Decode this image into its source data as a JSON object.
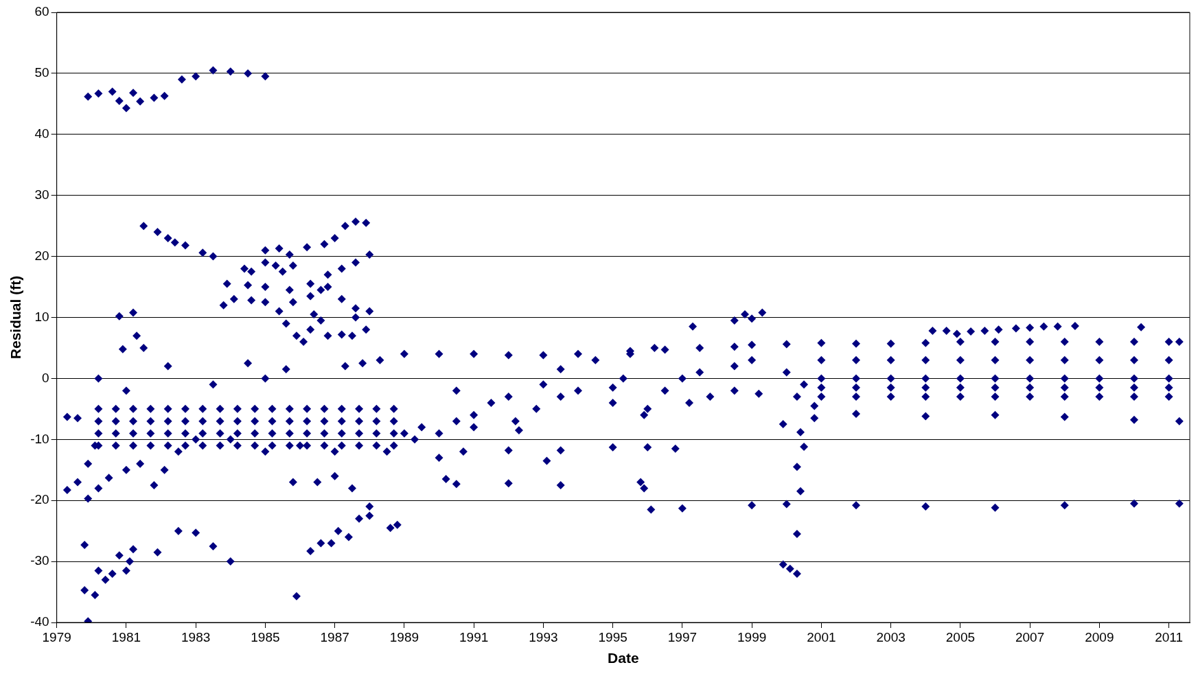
{
  "chart_data": {
    "type": "scatter",
    "xlabel": "Date",
    "ylabel": "Residual (ft)",
    "xlim": [
      1979,
      2011.6
    ],
    "xticks": [
      1979,
      1981,
      1983,
      1985,
      1987,
      1989,
      1991,
      1993,
      1995,
      1997,
      1999,
      2001,
      2003,
      2005,
      2007,
      2009,
      2011
    ],
    "ylim": [
      -40,
      60
    ],
    "yticks": [
      -40,
      -30,
      -20,
      -10,
      0,
      10,
      20,
      30,
      40,
      50,
      60
    ],
    "grid": "y",
    "legend": false,
    "marker": "diamond",
    "series": [
      {
        "color": "#000080",
        "x": [
          1979.9,
          1980.2,
          1980.6,
          1980.8,
          1981.0,
          1981.2,
          1981.4,
          1981.8,
          1982.1,
          1982.6,
          1983,
          1983.5,
          1984,
          1984.5,
          1985
        ],
        "values": [
          46.2,
          46.7,
          47,
          45.5,
          44.3,
          46.8,
          45.4,
          46,
          46.3,
          49,
          49.5,
          50.5,
          50.3,
          50,
          49.5
        ]
      },
      {
        "color": "#000080",
        "x": [
          1981.5,
          1981.9,
          1982.2,
          1982.4,
          1982.7,
          1983.2,
          1983.5
        ],
        "values": [
          25,
          24,
          23,
          22.3,
          21.8,
          20.6,
          20
        ]
      },
      {
        "color": "#000080",
        "x": [
          1983.8,
          1984.1,
          1984.6,
          1985,
          1985.8,
          1986.3,
          1986.6,
          1986.8,
          1987.2,
          1987.6,
          1988
        ],
        "values": [
          12,
          13,
          12.8,
          12.5,
          12.5,
          13.5,
          14.5,
          15,
          13,
          11.5,
          11
        ]
      },
      {
        "color": "#000080",
        "x": [
          1983.9,
          1984.5,
          1985,
          1985.7,
          1986.3,
          1986.8,
          1987.2,
          1987.6,
          1988
        ],
        "values": [
          15.5,
          15.3,
          15,
          14.5,
          15.5,
          17,
          18,
          19,
          20.3
        ]
      },
      {
        "color": "#000080",
        "x": [
          1985,
          1985.4,
          1985.7,
          1986.2,
          1986.7,
          1987,
          1987.3,
          1987.6,
          1987.9
        ],
        "values": [
          21,
          21.3,
          20.3,
          21.5,
          22,
          23,
          25,
          25.7,
          25.5
        ]
      },
      {
        "color": "#000080",
        "x": [
          1984.4,
          1984.6,
          1985,
          1985.3,
          1985.5,
          1985.8,
          1985.4,
          1985.6,
          1985.9,
          1986.1,
          1986.4,
          1986.3,
          1986.6,
          1986.8,
          1987.2,
          1987.5,
          1987.6,
          1987.9
        ],
        "values": [
          18,
          17.5,
          19,
          18.5,
          17.5,
          18.5,
          11,
          9,
          7,
          6,
          10.5,
          8,
          9.5,
          7,
          7.2,
          7,
          10,
          8
        ]
      },
      {
        "color": "#000080",
        "x": [
          1980.8,
          1981.2,
          1980.9,
          1981.3,
          1981.5
        ],
        "values": [
          10.2,
          10.8,
          4.8,
          7,
          5
        ]
      },
      {
        "color": "#000080",
        "x": [
          1981.2,
          1981.9,
          1982.5,
          1983,
          1983.5,
          1984
        ],
        "values": [
          -28,
          -28.5,
          -25,
          -25.3,
          -27.5,
          -30
        ]
      },
      {
        "color": "#000080",
        "x": [
          1979.8,
          1979.8,
          1980.1,
          1979.9,
          1980.2,
          1980.4,
          1980.6,
          1980.8,
          1981,
          1981.1
        ],
        "values": [
          -27.3,
          -34.7,
          -35.5,
          -39.8,
          -31.5,
          -33,
          -32,
          -29,
          -31.5,
          -30
        ]
      },
      {
        "color": "#000080",
        "x": [
          1985.9,
          1986.3,
          1986.6,
          1986.9,
          1987.1,
          1987.4,
          1987.7,
          1988
        ],
        "values": [
          -35.7,
          -28.3,
          -27,
          -27,
          -25,
          -26,
          -23,
          -22.5
        ]
      },
      {
        "color": "#000080",
        "x": [
          1985,
          1985.8,
          1986.5,
          1987,
          1987.5,
          1988,
          1988.6,
          1988.8
        ],
        "values": [
          -12,
          -17,
          -17,
          -16,
          -18,
          -21,
          -24.5,
          -24
        ]
      },
      {
        "color": "#000080",
        "x": [
          1979.3,
          1979.6,
          1979.3,
          1979.6,
          1979.9,
          1980.1,
          1979.9,
          1980.2,
          1980.5,
          1981,
          1981.4,
          1981.8,
          1982.1,
          1982.5,
          1983
        ],
        "values": [
          -6.3,
          -6.5,
          -18.3,
          -17,
          -14,
          -11,
          -19.7,
          -18,
          -16.3,
          -15,
          -14,
          -17.5,
          -15,
          -12,
          -10
        ]
      },
      {
        "color": "#000080",
        "x": [
          1980.2,
          1980.7,
          1981.2,
          1981.7,
          1982.2,
          1982.7,
          1983.2,
          1983.7,
          1984.2,
          1984.7,
          1985.2,
          1985.7,
          1986.2,
          1986.7,
          1987.2,
          1987.7,
          1988.2,
          1988.7
        ],
        "values": [
          -5,
          -5,
          -5,
          -5,
          -5,
          -5,
          -5,
          -5,
          -5,
          -5,
          -5,
          -5,
          -5,
          -5,
          -5,
          -5,
          -5,
          -5
        ]
      },
      {
        "color": "#000080",
        "x": [
          1980.2,
          1980.7,
          1981.2,
          1981.7,
          1982.2,
          1982.7,
          1983.2,
          1983.7,
          1984.2,
          1984.7,
          1985.2,
          1985.7,
          1986.2,
          1986.7,
          1987.2,
          1987.7,
          1988.2,
          1988.7
        ],
        "values": [
          -7,
          -7,
          -7,
          -7,
          -7,
          -7,
          -7,
          -7,
          -7,
          -7,
          -7,
          -7,
          -7,
          -7,
          -7,
          -7,
          -7,
          -7
        ]
      },
      {
        "color": "#000080",
        "x": [
          1980.2,
          1980.7,
          1981.2,
          1981.7,
          1982.2,
          1982.7,
          1983.2,
          1983.7,
          1984.2,
          1984.7,
          1985.2,
          1985.7,
          1986.2,
          1986.7,
          1987.2,
          1987.7,
          1988.2,
          1988.7
        ],
        "values": [
          -9,
          -9,
          -9,
          -9,
          -9,
          -9,
          -9,
          -9,
          -9,
          -9,
          -9,
          -9,
          -9,
          -9,
          -9,
          -9,
          -9,
          -9
        ]
      },
      {
        "color": "#000080",
        "x": [
          1980.2,
          1980.7,
          1981.2,
          1981.7,
          1982.2,
          1982.7,
          1983.2,
          1983.7,
          1984.2,
          1984.7,
          1985.2,
          1985.7,
          1986.2,
          1986.7,
          1987.2,
          1987.7,
          1988.2,
          1988.7
        ],
        "values": [
          -11,
          -11,
          -11,
          -11,
          -11,
          -11,
          -11,
          -11,
          -11,
          -11,
          -11,
          -11,
          -11,
          -11,
          -11,
          -11,
          -11,
          -11
        ]
      },
      {
        "color": "#000080",
        "x": [
          1980.2,
          1981,
          1982.2,
          1983.5,
          1984.5,
          1985,
          1985.6,
          1984,
          1986,
          1987,
          1987.3,
          1987.8,
          1988.3
        ],
        "values": [
          0,
          -2,
          2,
          -1,
          2.5,
          0,
          1.5,
          -10,
          -11,
          -12,
          2,
          2.5,
          3
        ]
      },
      {
        "color": "#000080",
        "x": [
          1989,
          1990,
          1991,
          1992,
          1993,
          1994,
          1995.5,
          1996.5,
          1997.5,
          1998.5,
          1999,
          2000,
          2001,
          2002,
          2003,
          2004,
          2005,
          2006,
          2007,
          2008,
          2009,
          2010,
          2011,
          2011.3
        ],
        "values": [
          4,
          4,
          4,
          3.8,
          3.8,
          4,
          4.5,
          4.7,
          5,
          5.2,
          5.5,
          5.6,
          5.8,
          5.7,
          5.7,
          5.8,
          6,
          6,
          6,
          6,
          6,
          6,
          6,
          6
        ]
      },
      {
        "color": "#000080",
        "x": [
          1993,
          1993.5,
          1994.5,
          1995.5,
          1996.2,
          1997.3,
          1998.5,
          1998.8,
          1999,
          1999.3
        ],
        "values": [
          -1,
          1.5,
          3,
          4,
          5,
          8.5,
          9.5,
          10.5,
          9.8,
          10.8
        ]
      },
      {
        "color": "#000080",
        "x": [
          1988.5,
          1990,
          1990.7,
          1992,
          1993.1,
          1993.5,
          1995,
          1996,
          1996.8
        ],
        "values": [
          -12,
          -13,
          -12,
          -11.8,
          -13.5,
          -11.8,
          -11.3,
          -11.3,
          -11.5
        ]
      },
      {
        "color": "#000080",
        "x": [
          1990.2,
          1990.5,
          1992,
          1993.5,
          1995.8,
          1995.9,
          1996.1,
          1997,
          1999,
          2000,
          2002,
          2004,
          2006,
          2008,
          2010,
          2011.3
        ],
        "values": [
          -16.5,
          -17.3,
          -17.2,
          -17.5,
          -17,
          -18,
          -21.5,
          -21.3,
          -20.8,
          -20.6,
          -20.8,
          -21,
          -21.2,
          -20.8,
          -20.5,
          -20.5
        ]
      },
      {
        "color": "#000080",
        "x": [
          1999.9,
          2000.4,
          2000.8,
          2002,
          2004,
          2006,
          2008,
          2010,
          2011.3
        ],
        "values": [
          -7.5,
          -8.8,
          -6.5,
          -5.8,
          -6.2,
          -6,
          -6.3,
          -6.8,
          -7
        ]
      },
      {
        "color": "#000080",
        "x": [
          1999.9,
          2000.1,
          2000.3,
          2000.3,
          2000.4,
          2000.3,
          2000.5
        ],
        "values": [
          -30.5,
          -31.2,
          -32,
          -25.5,
          -18.5,
          -14.5,
          -11.2
        ]
      },
      {
        "color": "#000080",
        "x": [
          2004.2,
          2004.6,
          2004.9,
          2005.3,
          2005.7,
          2006.1,
          2006.6,
          2007,
          2007.4,
          2007.8,
          2008.3,
          2010.2
        ],
        "values": [
          7.8,
          7.8,
          7.3,
          7.7,
          7.8,
          8,
          8.2,
          8.3,
          8.5,
          8.5,
          8.6,
          8.4
        ]
      },
      {
        "color": "#000080",
        "x": [
          1989,
          1989.3,
          1989.5,
          1990,
          1990.5,
          1990.5,
          1991,
          1991,
          1991.5,
          1992,
          1992.2,
          1992.3,
          1992.8,
          1993.5,
          1994,
          1995,
          1995,
          1995.3,
          1995.9,
          1996,
          1996.5,
          1997,
          1997.2,
          1997.5,
          1997.8,
          1998.5,
          1998.5,
          1999,
          1999.2,
          2000,
          2000.3,
          2000.5,
          2000.8
        ],
        "values": [
          -9,
          -10,
          -8,
          -9,
          -7,
          -2,
          -6,
          -8,
          -4,
          -3,
          -7,
          -8.5,
          -5,
          -3,
          -2,
          -1.5,
          -4,
          0,
          -6,
          -5,
          -2,
          0,
          -4,
          1,
          -3,
          2,
          -2,
          3,
          -2.5,
          1,
          -3,
          -1,
          -4.5
        ]
      },
      {
        "color": "#000080",
        "x": [
          2001,
          2002,
          2003,
          2004,
          2005,
          2006,
          2007,
          2008,
          2009,
          2010,
          2011
        ],
        "values": [
          3,
          3,
          3,
          3,
          3,
          3,
          3,
          3,
          3,
          3,
          3
        ]
      },
      {
        "color": "#000080",
        "x": [
          2001,
          2002,
          2003,
          2004,
          2005,
          2006,
          2007,
          2008,
          2009,
          2010,
          2011
        ],
        "values": [
          0,
          0,
          0,
          0,
          0,
          0,
          0,
          0,
          0,
          0,
          0
        ]
      },
      {
        "color": "#000080",
        "x": [
          2001,
          2002,
          2003,
          2004,
          2005,
          2006,
          2007,
          2008,
          2009,
          2010,
          2011
        ],
        "values": [
          -1.5,
          -1.5,
          -1.5,
          -1.5,
          -1.5,
          -1.5,
          -1.5,
          -1.5,
          -1.5,
          -1.5,
          -1.5
        ]
      },
      {
        "color": "#000080",
        "x": [
          2001,
          2002,
          2003,
          2004,
          2005,
          2006,
          2007,
          2008,
          2009,
          2010,
          2011
        ],
        "values": [
          -3,
          -3,
          -3,
          -3,
          -3,
          -3,
          -3,
          -3,
          -3,
          -3,
          -3
        ]
      }
    ]
  }
}
